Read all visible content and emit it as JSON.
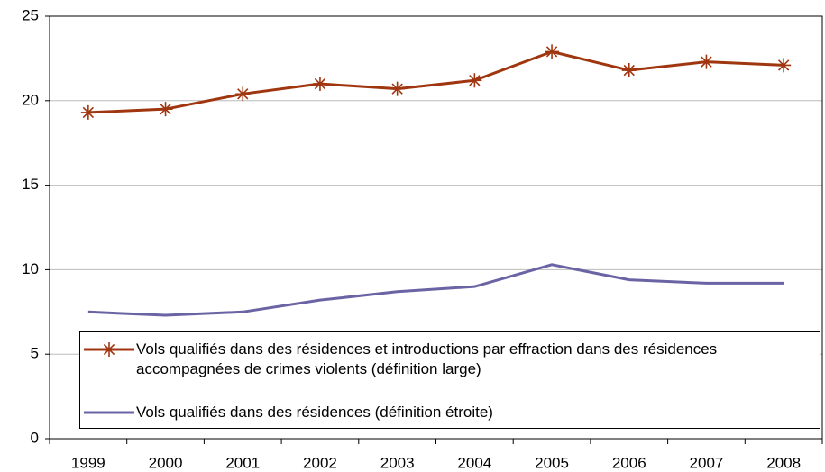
{
  "chart_data": {
    "type": "line",
    "categories": [
      "1999",
      "2000",
      "2001",
      "2002",
      "2003",
      "2004",
      "2005",
      "2006",
      "2007",
      "2008"
    ],
    "series": [
      {
        "name": "Vols qualifiés dans des résidences et introductions par effraction dans des résidences accompagnées de crimes violents (définition large)",
        "color": "#a0360f",
        "marker": "asterisk",
        "values": [
          19.3,
          19.5,
          20.4,
          21.0,
          20.7,
          21.2,
          22.9,
          21.8,
          22.3,
          22.1
        ]
      },
      {
        "name": "Vols qualifiés dans des résidences (définition étroite)",
        "color": "#6a64a4",
        "marker": "none",
        "values": [
          7.5,
          7.3,
          7.5,
          8.2,
          8.7,
          9.0,
          10.3,
          9.4,
          9.2,
          9.2
        ]
      }
    ],
    "ylim": [
      0,
      25
    ],
    "yticks": [
      0,
      5,
      10,
      15,
      20,
      25
    ],
    "grid": true
  }
}
